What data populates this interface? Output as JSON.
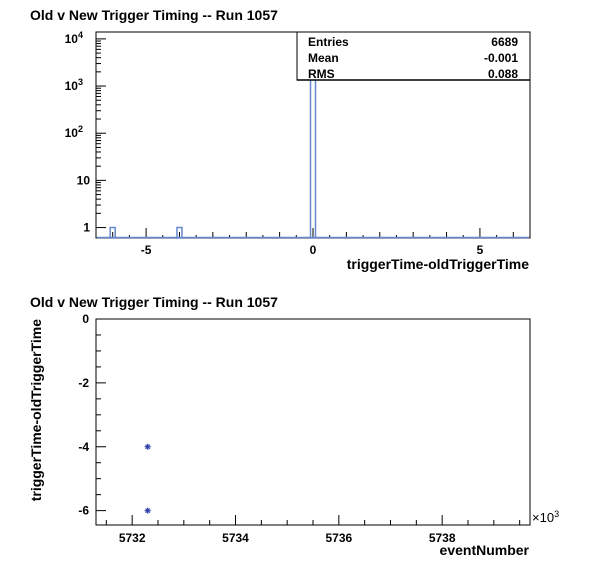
{
  "chart_data": [
    {
      "type": "bar",
      "title": "Old v New Trigger Timing -- Run 1057",
      "xlabel": "triggerTime-oldTriggerTime",
      "ylabel": "",
      "log_y": true,
      "xlim": [
        -6.5,
        6.5
      ],
      "ylim": [
        0.6,
        14000
      ],
      "x_ticks": [
        -5,
        0,
        5
      ],
      "y_ticks": [
        "1",
        "10",
        "10^2",
        "10^3",
        "10^4"
      ],
      "bins": [
        {
          "x": -6.0,
          "value": 1
        },
        {
          "x": -4.0,
          "value": 1
        },
        {
          "x": 0.0,
          "value": 6687
        }
      ],
      "color": "#6688cc",
      "stats": {
        "rows": [
          {
            "label": "Entries",
            "value": "6689"
          },
          {
            "label": "Mean",
            "value": "-0.001"
          },
          {
            "label": "RMS",
            "value": "0.088"
          }
        ]
      }
    },
    {
      "type": "scatter",
      "title": "Old v New Trigger Timing -- Run 1057",
      "xlabel": "eventNumber",
      "ylabel": "triggerTime-oldTriggerTime",
      "x_multiplier_label": "×10",
      "x_multiplier_exp": "3",
      "xlim": [
        5731.3,
        5739.7
      ],
      "ylim": [
        -6.45,
        0
      ],
      "x_ticks": [
        "5732",
        "5734",
        "5736",
        "5738"
      ],
      "y_ticks": [
        "0",
        "-2",
        "-4",
        "-6"
      ],
      "points": [
        {
          "x": 5732.3,
          "y": -4
        },
        {
          "x": 5732.3,
          "y": -6
        }
      ],
      "color": "#3344aa"
    }
  ]
}
